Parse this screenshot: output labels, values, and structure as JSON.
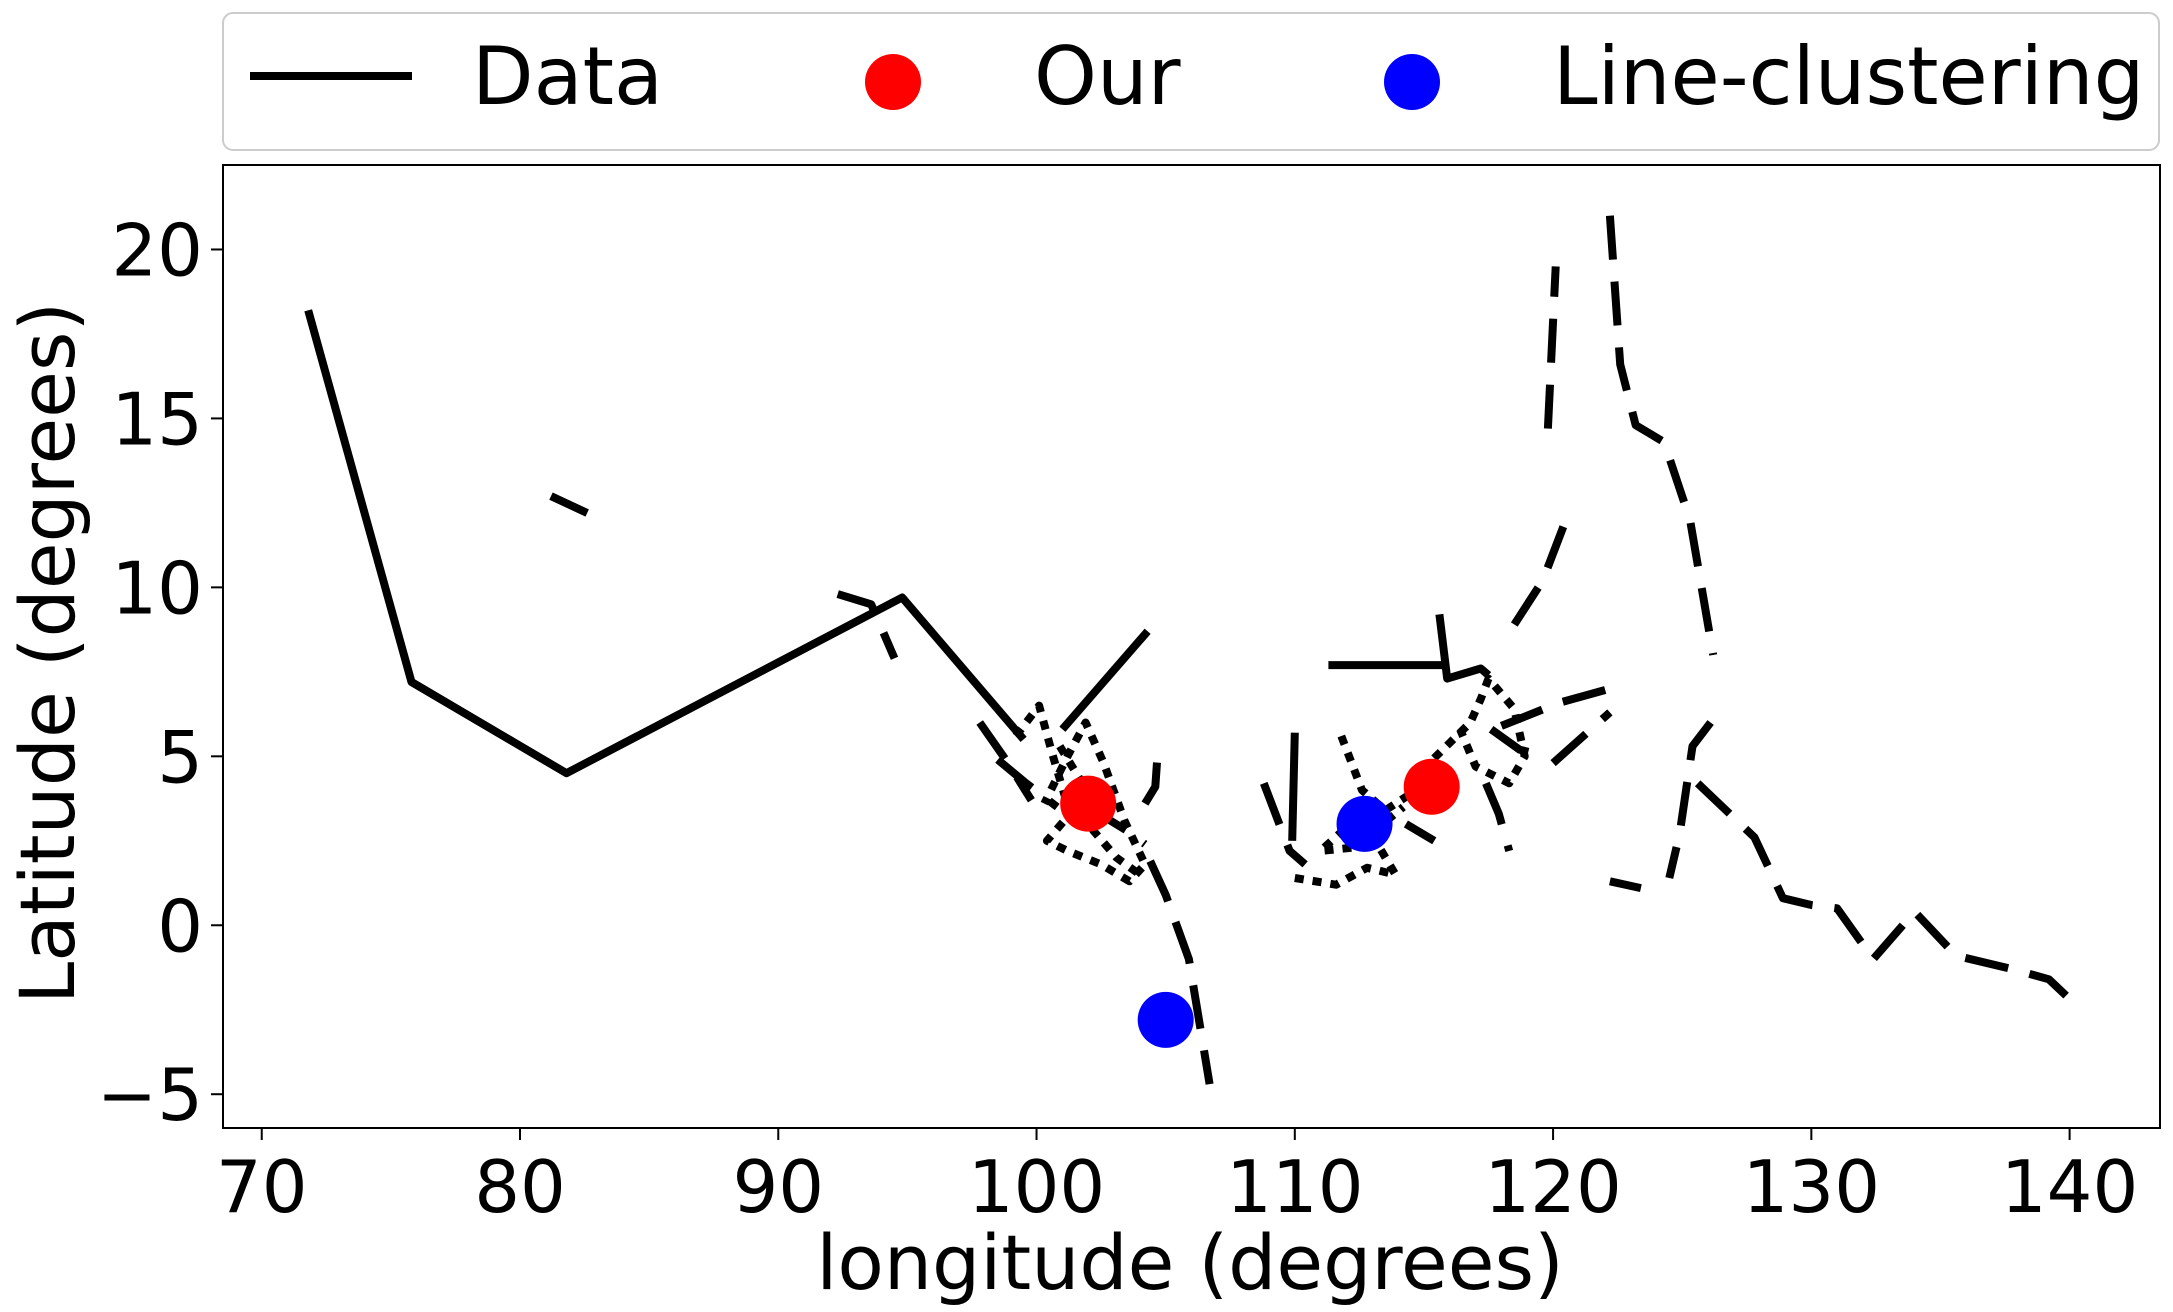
{
  "chart_data": {
    "type": "line",
    "xlabel": "longitude (degrees)",
    "ylabel": "Latitude (degrees)",
    "xlim": [
      68.5,
      143.5
    ],
    "ylim": [
      -6.0,
      22.5
    ],
    "xticks": [
      70,
      80,
      90,
      100,
      110,
      120,
      130,
      140
    ],
    "yticks": [
      -5,
      0,
      5,
      10,
      15,
      20
    ],
    "ytick_labels": [
      "−5",
      "0",
      "5",
      "10",
      "15",
      "20"
    ],
    "grid": false,
    "legend": {
      "placement": "top",
      "entries": [
        {
          "label": "Data",
          "marker": "line",
          "color": "#000000"
        },
        {
          "label": "Our",
          "marker": "circle",
          "color": "#ff0000"
        },
        {
          "label": "Line-clustering",
          "marker": "circle",
          "color": "#0000ff"
        }
      ]
    },
    "series": [
      {
        "name": "Data",
        "color": "#000000",
        "tracks": [
          {
            "style": "solid",
            "points": [
              [
                71.8,
                18.2
              ],
              [
                75.8,
                7.2
              ],
              [
                81.8,
                4.5
              ],
              [
                94.8,
                9.7
              ],
              [
                99.5,
                5.5
              ]
            ]
          },
          {
            "style": "solid",
            "points": [
              [
                101.0,
                5.8
              ],
              [
                104.3,
                8.7
              ]
            ]
          },
          {
            "style": "dashed",
            "points": [
              [
                81.2,
                12.7
              ],
              [
                82.6,
                12.2
              ]
            ]
          },
          {
            "style": "dashed",
            "points": [
              [
                92.3,
                9.8
              ],
              [
                93.6,
                9.5
              ],
              [
                94.5,
                7.9
              ]
            ]
          },
          {
            "style": "dashed",
            "points": [
              [
                97.8,
                6.0
              ],
              [
                98.9,
                4.8
              ],
              [
                99.8,
                3.7
              ]
            ]
          },
          {
            "style": "dashed",
            "points": [
              [
                98.5,
                4.9
              ],
              [
                99.6,
                4.2
              ],
              [
                100.8,
                3.5
              ]
            ]
          },
          {
            "style": "dotted",
            "points": [
              [
                99.2,
                5.6
              ],
              [
                100.1,
                6.5
              ],
              [
                100.6,
                5.1
              ],
              [
                101.3,
                3.3
              ],
              [
                100.4,
                2.5
              ],
              [
                101.2,
                2.2
              ],
              [
                102.5,
                1.8
              ],
              [
                103.6,
                1.3
              ],
              [
                104.2,
                1.8
              ],
              [
                103.4,
                3.1
              ],
              [
                102.6,
                4.8
              ],
              [
                101.9,
                6.0
              ],
              [
                101.2,
                5.0
              ],
              [
                100.3,
                3.6
              ]
            ]
          },
          {
            "style": "dotted",
            "points": [
              [
                100.9,
                5.3
              ],
              [
                101.7,
                4.3
              ],
              [
                102.2,
                2.8
              ],
              [
                103.1,
                2.0
              ],
              [
                104.0,
                1.5
              ]
            ]
          },
          {
            "style": "dashed",
            "points": [
              [
                102.0,
                3.5
              ],
              [
                103.5,
                2.8
              ],
              [
                104.2,
                2.4
              ]
            ]
          },
          {
            "style": "dashed",
            "points": [
              [
                104.2,
                3.6
              ],
              [
                104.6,
                4.1
              ],
              [
                104.7,
                5.2
              ]
            ]
          },
          {
            "style": "dashed",
            "points": [
              [
                104.4,
                1.9
              ],
              [
                105.0,
                0.9
              ],
              [
                105.9,
                -1.0
              ],
              [
                106.7,
                -4.7
              ]
            ]
          },
          {
            "style": "dashed",
            "points": [
              [
                108.8,
                4.2
              ],
              [
                109.8,
                2.2
              ],
              [
                110.4,
                1.8
              ]
            ]
          },
          {
            "style": "solid",
            "points": [
              [
                109.9,
                2.5
              ],
              [
                110.0,
                5.7
              ]
            ]
          },
          {
            "style": "dotted",
            "points": [
              [
                110.0,
                1.4
              ],
              [
                111.6,
                1.2
              ],
              [
                112.8,
                1.7
              ],
              [
                113.9,
                1.5
              ],
              [
                113.2,
                2.4
              ],
              [
                112.0,
                2.9
              ],
              [
                111.0,
                2.2
              ],
              [
                112.3,
                2.3
              ],
              [
                114.2,
                3.5
              ]
            ]
          },
          {
            "style": "dotted",
            "points": [
              [
                111.8,
                5.6
              ],
              [
                112.6,
                4.0
              ],
              [
                113.5,
                3.4
              ],
              [
                114.5,
                3.9
              ],
              [
                115.2,
                4.8
              ],
              [
                116.0,
                5.4
              ],
              [
                116.8,
                6.0
              ],
              [
                117.2,
                6.7
              ],
              [
                117.5,
                7.3
              ],
              [
                118.5,
                6.4
              ],
              [
                118.9,
                5.0
              ],
              [
                118.3,
                4.2
              ],
              [
                117.0,
                4.7
              ],
              [
                116.4,
                5.8
              ]
            ]
          },
          {
            "style": "solid",
            "points": [
              [
                111.3,
                7.7
              ],
              [
                115.9,
                7.7
              ]
            ]
          },
          {
            "style": "solid",
            "points": [
              [
                115.6,
                9.2
              ],
              [
                115.9,
                7.3
              ],
              [
                117.2,
                7.6
              ],
              [
                117.5,
                7.4
              ]
            ]
          },
          {
            "style": "dashed",
            "points": [
              [
                114.3,
                3.0
              ],
              [
                115.4,
                2.5
              ]
            ]
          },
          {
            "style": "dashed",
            "points": [
              [
                117.6,
                5.8
              ],
              [
                118.7,
                5.2
              ],
              [
                119.7,
                5.0
              ]
            ]
          },
          {
            "style": "dashed",
            "points": [
              [
                117.4,
                4.2
              ],
              [
                117.9,
                3.3
              ],
              [
                118.3,
                2.2
              ]
            ]
          },
          {
            "style": "dashed",
            "points": [
              [
                118.0,
                5.9
              ],
              [
                120.3,
                6.6
              ],
              [
                122.2,
                7.0
              ]
            ]
          },
          {
            "style": "dashed",
            "points": [
              [
                120.0,
                4.8
              ],
              [
                122.2,
                6.3
              ]
            ]
          },
          {
            "style": "dashed",
            "points": [
              [
                118.5,
                8.9
              ],
              [
                119.6,
                10.2
              ],
              [
                120.4,
                11.8
              ]
            ]
          },
          {
            "style": "dashed",
            "points": [
              [
                119.8,
                14.7
              ],
              [
                120.1,
                19.5
              ]
            ]
          },
          {
            "style": "dashed",
            "points": [
              [
                122.2,
                21.0
              ],
              [
                122.6,
                16.6
              ],
              [
                123.2,
                14.8
              ],
              [
                124.3,
                14.3
              ],
              [
                125.3,
                12.0
              ],
              [
                126.2,
                8.0
              ]
            ]
          },
          {
            "style": "dashed",
            "points": [
              [
                126.1,
                6.0
              ],
              [
                125.4,
                5.3
              ],
              [
                124.9,
                2.7
              ],
              [
                124.5,
                1.4
              ]
            ]
          },
          {
            "style": "dashed",
            "points": [
              [
                122.2,
                1.3
              ],
              [
                123.4,
                1.1
              ]
            ]
          },
          {
            "style": "dashed",
            "points": [
              [
                125.6,
                4.2
              ],
              [
                127.8,
                2.6
              ],
              [
                128.9,
                0.8
              ],
              [
                130.0,
                0.6
              ],
              [
                131.0,
                0.5
              ],
              [
                132.4,
                -1.0
              ],
              [
                134.0,
                0.4
              ],
              [
                135.6,
                -0.9
              ],
              [
                137.8,
                -1.3
              ],
              [
                139.2,
                -1.6
              ],
              [
                140.3,
                -2.4
              ]
            ]
          }
        ]
      },
      {
        "name": "Our",
        "color": "#ff0000",
        "points": [
          [
            102.0,
            3.6
          ],
          [
            115.3,
            4.1
          ]
        ]
      },
      {
        "name": "Line-clustering",
        "color": "#0000ff",
        "points": [
          [
            105.0,
            -2.8
          ],
          [
            112.7,
            3.0
          ]
        ]
      }
    ]
  }
}
